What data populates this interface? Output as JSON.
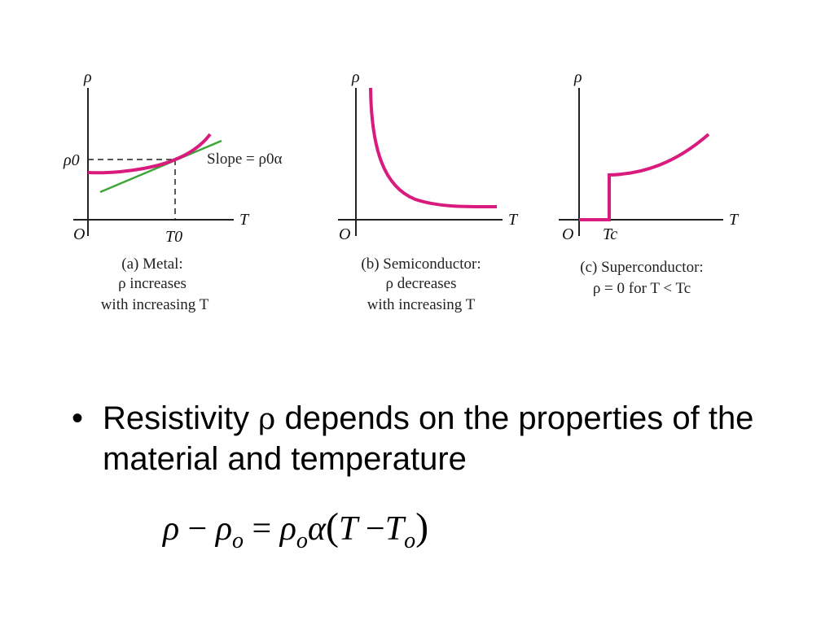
{
  "colors": {
    "curve": "#d81b7c",
    "tangent": "#3aa636",
    "axis": "#222222",
    "text": "#000000"
  },
  "panels": [
    {
      "y_axis_label": "ρ",
      "x_axis_label": "T",
      "origin_label": "O",
      "rho0_label": "ρ0",
      "t0_label": "T0",
      "slope_label": "Slope = ρ0α",
      "caption": [
        "(a) Metal:",
        "ρ increases",
        "with increasing T"
      ]
    },
    {
      "y_axis_label": "ρ",
      "x_axis_label": "T",
      "origin_label": "O",
      "caption": [
        "(b) Semiconductor:",
        "ρ decreases",
        "with increasing T"
      ]
    },
    {
      "y_axis_label": "ρ",
      "x_axis_label": "T",
      "origin_label": "O",
      "tc_label": "Tc",
      "caption": [
        "(c) Superconductor:",
        "ρ = 0 for T < Tc"
      ]
    }
  ],
  "bullet": {
    "symbol": "•",
    "text_before": "Resistivity",
    "rho": "ρ",
    "text_after": "depends on the properties of the material and temperature"
  },
  "equation": {
    "rho": "ρ",
    "minus": "−",
    "rho_o": "ρ",
    "o_sub": "o",
    "equals": "=",
    "alpha": "α",
    "open": "(",
    "T": "T",
    "close": ")"
  }
}
